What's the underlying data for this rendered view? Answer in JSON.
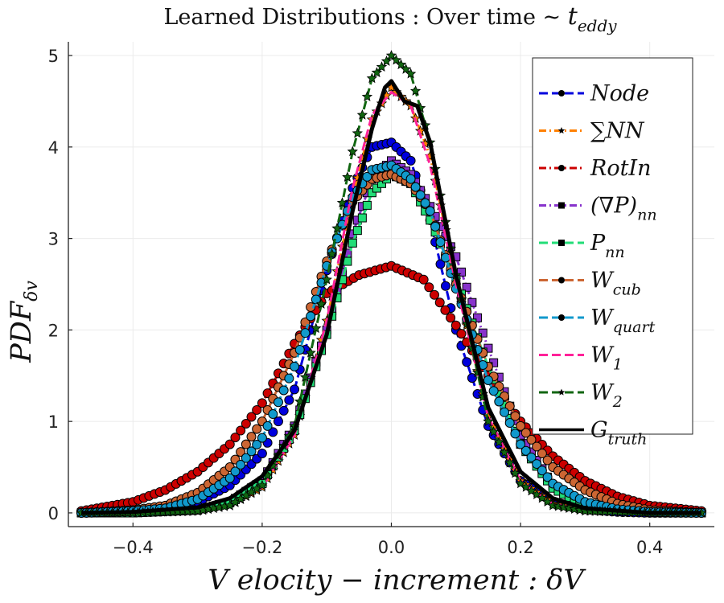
{
  "chart_data": {
    "type": "line",
    "title": "Learned Distributions :  Over time ~ t_eddy",
    "title_main": "Learned Distributions :  Over time ~ ",
    "title_var": "t",
    "title_sub": "eddy",
    "xlabel": "V elocity − increment : δV",
    "ylabel_main": "PDF",
    "ylabel_sub": "δv",
    "xlim": [
      -0.5,
      0.5
    ],
    "ylim": [
      -0.15,
      5.15
    ],
    "xticks": [
      -0.4,
      -0.2,
      0.0,
      0.2,
      0.4
    ],
    "xtick_labels": [
      "−0.4",
      "−0.2",
      "0.0",
      "0.2",
      "0.4"
    ],
    "yticks": [
      0,
      1,
      2,
      3,
      4,
      5
    ],
    "ytick_labels": [
      "0",
      "1",
      "2",
      "3",
      "4",
      "5"
    ],
    "grid": true,
    "legend_position": "top-right",
    "series": [
      {
        "name": "Node",
        "label_main": "Node",
        "label_sub": "",
        "color": "#0000dd",
        "marker": "circle",
        "dash": "dash",
        "x": [
          -0.48,
          -0.4,
          -0.35,
          -0.3,
          -0.25,
          -0.2,
          -0.15,
          -0.1,
          -0.06,
          -0.03,
          0.0,
          0.03,
          0.06,
          0.1,
          0.15,
          0.2,
          0.25,
          0.3,
          0.35,
          0.4,
          0.48
        ],
        "y": [
          0.0,
          0.01,
          0.04,
          0.12,
          0.3,
          0.65,
          1.35,
          2.65,
          3.55,
          4.0,
          4.05,
          3.85,
          3.2,
          2.0,
          0.95,
          0.35,
          0.12,
          0.04,
          0.01,
          0.0,
          0.0
        ]
      },
      {
        "name": "∑NN",
        "label_main": "∑NN",
        "label_sub": "",
        "color": "#ff8000",
        "marker": "star",
        "dash": "dashdot",
        "x": [
          -0.48,
          -0.4,
          -0.3,
          -0.25,
          -0.2,
          -0.15,
          -0.1,
          -0.06,
          -0.03,
          0.0,
          0.03,
          0.06,
          0.1,
          0.15,
          0.2,
          0.25,
          0.3,
          0.4,
          0.48
        ],
        "y": [
          0.0,
          0.0,
          0.02,
          0.08,
          0.28,
          0.85,
          2.1,
          3.45,
          4.3,
          4.65,
          4.45,
          3.9,
          2.55,
          1.05,
          0.35,
          0.1,
          0.03,
          0.0,
          0.0
        ]
      },
      {
        "name": "RotIn",
        "label_main": "RotIn",
        "label_sub": "",
        "color": "#cc0000",
        "marker": "circle",
        "dash": "dashdot",
        "x": [
          -0.48,
          -0.4,
          -0.35,
          -0.3,
          -0.25,
          -0.2,
          -0.15,
          -0.1,
          -0.05,
          0.0,
          0.05,
          0.1,
          0.15,
          0.2,
          0.25,
          0.3,
          0.35,
          0.4,
          0.48
        ],
        "y": [
          0.02,
          0.12,
          0.25,
          0.45,
          0.75,
          1.2,
          1.85,
          2.4,
          2.6,
          2.7,
          2.55,
          2.05,
          1.5,
          1.0,
          0.62,
          0.35,
          0.18,
          0.08,
          0.02
        ]
      },
      {
        "name": "(∇P)_nn",
        "label_main": "(∇P)",
        "label_sub": "nn",
        "color": "#8833cc",
        "marker": "square",
        "dash": "dashdot",
        "x": [
          -0.48,
          -0.4,
          -0.3,
          -0.25,
          -0.2,
          -0.15,
          -0.1,
          -0.06,
          -0.03,
          0.0,
          0.03,
          0.06,
          0.1,
          0.15,
          0.2,
          0.25,
          0.3,
          0.4,
          0.48
        ],
        "y": [
          0.0,
          0.0,
          0.03,
          0.12,
          0.35,
          0.95,
          2.0,
          3.05,
          3.65,
          3.85,
          3.7,
          3.35,
          2.8,
          1.8,
          0.85,
          0.3,
          0.08,
          0.01,
          0.0
        ]
      },
      {
        "name": "P_nn",
        "label_main": "P",
        "label_sub": "nn",
        "color": "#22dd77",
        "marker": "square",
        "dash": "dash",
        "x": [
          -0.48,
          -0.4,
          -0.3,
          -0.25,
          -0.2,
          -0.15,
          -0.1,
          -0.06,
          -0.03,
          0.0,
          0.03,
          0.06,
          0.1,
          0.15,
          0.2,
          0.25,
          0.3,
          0.4,
          0.48
        ],
        "y": [
          0.0,
          0.0,
          0.03,
          0.11,
          0.32,
          0.9,
          1.95,
          2.95,
          3.5,
          3.7,
          3.6,
          3.2,
          2.55,
          1.6,
          0.75,
          0.27,
          0.07,
          0.01,
          0.0
        ]
      },
      {
        "name": "W_cub",
        "label_main": "W",
        "label_sub": "cub",
        "color": "#cc6633",
        "marker": "circle",
        "dash": "dash",
        "x": [
          -0.48,
          -0.4,
          -0.35,
          -0.3,
          -0.25,
          -0.2,
          -0.15,
          -0.1,
          -0.06,
          -0.03,
          0.0,
          0.03,
          0.06,
          0.1,
          0.15,
          0.2,
          0.25,
          0.3,
          0.35,
          0.4,
          0.48
        ],
        "y": [
          0.0,
          0.03,
          0.08,
          0.22,
          0.5,
          1.0,
          1.75,
          2.75,
          3.4,
          3.65,
          3.7,
          3.6,
          3.3,
          2.5,
          1.6,
          0.95,
          0.5,
          0.25,
          0.1,
          0.03,
          0.0
        ]
      },
      {
        "name": "W_quart",
        "label_main": "W",
        "label_sub": "quart",
        "color": "#1199cc",
        "marker": "circle",
        "dash": "dash",
        "x": [
          -0.48,
          -0.4,
          -0.35,
          -0.3,
          -0.25,
          -0.2,
          -0.15,
          -0.1,
          -0.06,
          -0.03,
          0.0,
          0.03,
          0.06,
          0.1,
          0.15,
          0.2,
          0.25,
          0.3,
          0.35,
          0.4,
          0.48
        ],
        "y": [
          0.0,
          0.02,
          0.05,
          0.15,
          0.38,
          0.82,
          1.6,
          2.7,
          3.45,
          3.75,
          3.8,
          3.65,
          3.3,
          2.45,
          1.45,
          0.75,
          0.32,
          0.12,
          0.04,
          0.01,
          0.0
        ]
      },
      {
        "name": "W_1",
        "label_main": "W",
        "label_sub": "1",
        "color": "#ff2299",
        "marker": "none",
        "dash": "dash",
        "x": [
          -0.48,
          -0.4,
          -0.3,
          -0.25,
          -0.2,
          -0.15,
          -0.1,
          -0.06,
          -0.03,
          0.0,
          0.03,
          0.06,
          0.1,
          0.15,
          0.2,
          0.25,
          0.3,
          0.4,
          0.48
        ],
        "y": [
          0.0,
          0.0,
          0.02,
          0.08,
          0.28,
          0.85,
          2.1,
          3.55,
          4.35,
          4.6,
          4.45,
          3.8,
          2.5,
          1.05,
          0.35,
          0.1,
          0.03,
          0.0,
          0.0
        ]
      },
      {
        "name": "W_2",
        "label_main": "W",
        "label_sub": "2",
        "color": "#116611",
        "marker": "star",
        "dash": "dash",
        "x": [
          -0.48,
          -0.4,
          -0.3,
          -0.25,
          -0.2,
          -0.15,
          -0.1,
          -0.06,
          -0.03,
          0.0,
          0.03,
          0.06,
          0.1,
          0.15,
          0.2,
          0.25,
          0.3,
          0.4,
          0.48
        ],
        "y": [
          0.0,
          0.0,
          0.02,
          0.08,
          0.3,
          0.95,
          2.55,
          3.95,
          4.75,
          5.0,
          4.8,
          4.05,
          2.6,
          1.0,
          0.32,
          0.08,
          0.02,
          0.0,
          0.0
        ]
      },
      {
        "name": "G_truth",
        "label_main": "G",
        "label_sub": "truth",
        "color": "#000000",
        "marker": "none",
        "dash": "solid",
        "x": [
          -0.48,
          -0.4,
          -0.3,
          -0.25,
          -0.2,
          -0.15,
          -0.1,
          -0.06,
          -0.03,
          -0.01,
          0.0,
          0.02,
          0.04,
          0.06,
          0.1,
          0.15,
          0.2,
          0.25,
          0.3,
          0.4,
          0.48
        ],
        "y": [
          0.0,
          0.01,
          0.06,
          0.16,
          0.4,
          0.9,
          1.95,
          3.3,
          4.2,
          4.65,
          4.72,
          4.5,
          4.45,
          4.05,
          2.6,
          1.15,
          0.45,
          0.16,
          0.05,
          0.0,
          0.0
        ]
      }
    ]
  }
}
